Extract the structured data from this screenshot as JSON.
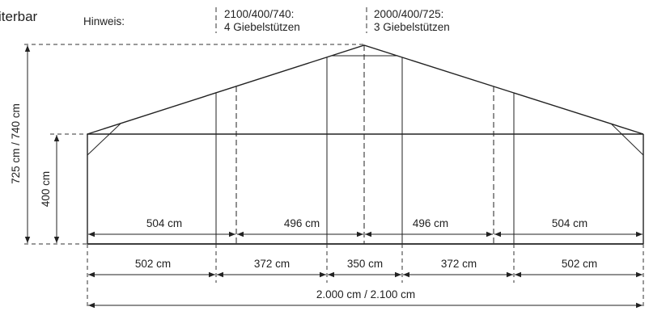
{
  "corner_text": "iterbar",
  "note": {
    "label": "Hinweis:",
    "variant_a": {
      "model": "2100/400/740:",
      "posts": "4 Giebelstützen"
    },
    "variant_b": {
      "model": "2000/400/725:",
      "posts": "3 Giebelstützen"
    }
  },
  "dimensions": {
    "total_height": "725 cm / 740 cm",
    "wall_height": "400 cm",
    "upper_row": [
      "504 cm",
      "496 cm",
      "496 cm",
      "504 cm"
    ],
    "lower_row": [
      "502 cm",
      "372 cm",
      "350 cm",
      "372 cm",
      "502 cm"
    ],
    "total_width": "2.000 cm / 2.100 cm"
  }
}
